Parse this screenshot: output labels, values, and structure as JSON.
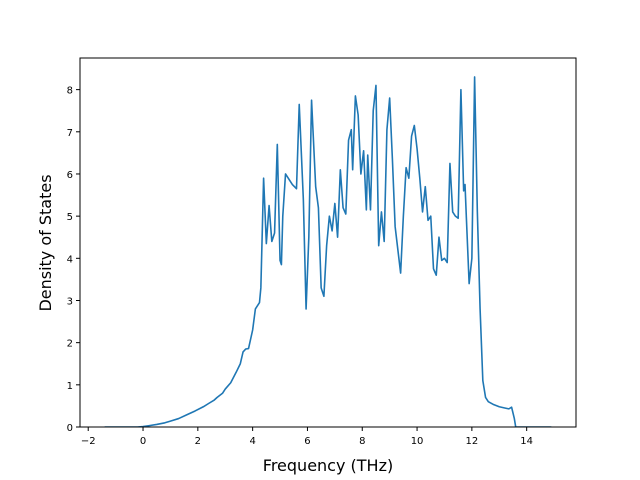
{
  "chart_data": {
    "type": "line",
    "title": "",
    "xlabel": "Frequency (THz)",
    "ylabel": "Density of States",
    "xlim": [
      -2.3,
      15.8
    ],
    "ylim": [
      0,
      8.75
    ],
    "xticks": [
      -2,
      0,
      2,
      4,
      6,
      8,
      10,
      12,
      14
    ],
    "yticks": [
      0,
      1,
      2,
      3,
      4,
      5,
      6,
      7,
      8
    ],
    "grid": false,
    "legend": "none",
    "line_color": "#1f77b4",
    "series": [
      {
        "x": [
          -1.4,
          -0.8,
          -0.2,
          0.0,
          0.2,
          0.5,
          0.8,
          1.0,
          1.3,
          1.6,
          1.9,
          2.2,
          2.4,
          2.6,
          2.7,
          2.9,
          3.0,
          3.2,
          3.4,
          3.55,
          3.65,
          3.75,
          3.85,
          4.0,
          4.1,
          4.25,
          4.3,
          4.4,
          4.5,
          4.6,
          4.7,
          4.8,
          4.9,
          5.0,
          5.05,
          5.1,
          5.2,
          5.3,
          5.45,
          5.6,
          5.7,
          5.85,
          5.95,
          6.05,
          6.15,
          6.3,
          6.4,
          6.5,
          6.6,
          6.7,
          6.8,
          6.9,
          7.0,
          7.1,
          7.2,
          7.3,
          7.4,
          7.5,
          7.6,
          7.65,
          7.75,
          7.85,
          7.95,
          8.05,
          8.15,
          8.2,
          8.3,
          8.4,
          8.5,
          8.6,
          8.7,
          8.8,
          8.9,
          9.0,
          9.1,
          9.2,
          9.3,
          9.4,
          9.5,
          9.6,
          9.7,
          9.8,
          9.9,
          10.0,
          10.1,
          10.2,
          10.3,
          10.4,
          10.5,
          10.6,
          10.7,
          10.8,
          10.9,
          11.0,
          11.1,
          11.2,
          11.3,
          11.4,
          11.5,
          11.6,
          11.7,
          11.75,
          11.8,
          11.9,
          12.0,
          12.1,
          12.2,
          12.3,
          12.4,
          12.5,
          12.6,
          12.8,
          13.0,
          13.2,
          13.35,
          13.45,
          13.55,
          13.6,
          13.7,
          14.0,
          14.4,
          14.9
        ],
        "y": [
          0,
          0,
          0,
          0.01,
          0.03,
          0.06,
          0.1,
          0.14,
          0.2,
          0.29,
          0.38,
          0.48,
          0.56,
          0.64,
          0.7,
          0.8,
          0.9,
          1.05,
          1.3,
          1.5,
          1.78,
          1.85,
          1.86,
          2.3,
          2.8,
          2.95,
          3.3,
          5.9,
          4.35,
          5.25,
          4.4,
          4.6,
          6.7,
          3.95,
          3.85,
          5.0,
          6.0,
          5.9,
          5.75,
          5.65,
          7.65,
          5.4,
          2.8,
          4.5,
          7.75,
          5.7,
          5.2,
          3.3,
          3.1,
          4.3,
          5.0,
          4.65,
          5.3,
          4.5,
          6.1,
          5.2,
          5.05,
          6.8,
          7.05,
          6.1,
          7.85,
          7.4,
          6.0,
          6.55,
          5.15,
          6.45,
          5.15,
          7.5,
          8.1,
          4.3,
          5.1,
          4.4,
          7.05,
          7.8,
          6.35,
          4.75,
          4.2,
          3.65,
          5.0,
          6.15,
          5.9,
          6.9,
          7.15,
          6.6,
          5.9,
          5.1,
          5.7,
          4.9,
          5.0,
          3.75,
          3.6,
          4.5,
          3.95,
          4.0,
          3.9,
          6.25,
          5.1,
          5.0,
          4.95,
          8.0,
          5.6,
          5.75,
          4.95,
          3.4,
          4.0,
          8.3,
          5.1,
          2.8,
          1.1,
          0.7,
          0.6,
          0.53,
          0.48,
          0.45,
          0.43,
          0.47,
          0.2,
          0,
          0,
          0,
          0,
          0
        ]
      }
    ]
  }
}
